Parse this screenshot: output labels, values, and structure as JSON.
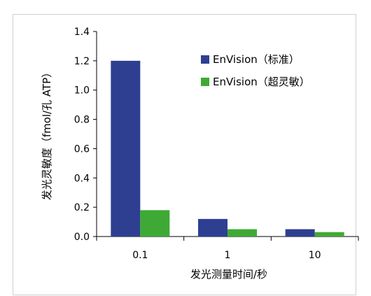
{
  "chart_data": {
    "type": "bar",
    "categories": [
      "0.1",
      "1",
      "10"
    ],
    "series": [
      {
        "name": "EnVision（标准）",
        "values": [
          1.2,
          0.12,
          0.05
        ],
        "color": "#2E3F92"
      },
      {
        "name": "EnVision（超灵敏）",
        "values": [
          0.18,
          0.05,
          0.03
        ],
        "color": "#3EAA35"
      }
    ],
    "title": "",
    "xlabel": "发光测量时间/秒",
    "ylabel": "发光灵敏度（fmol/孔 ATP）",
    "ylim": [
      0,
      1.4
    ],
    "yticks": [
      "0.0",
      "0.2",
      "0.4",
      "0.6",
      "0.8",
      "1.0",
      "1.2",
      "1.4"
    ],
    "grid": false,
    "legend_position": "top-right"
  }
}
